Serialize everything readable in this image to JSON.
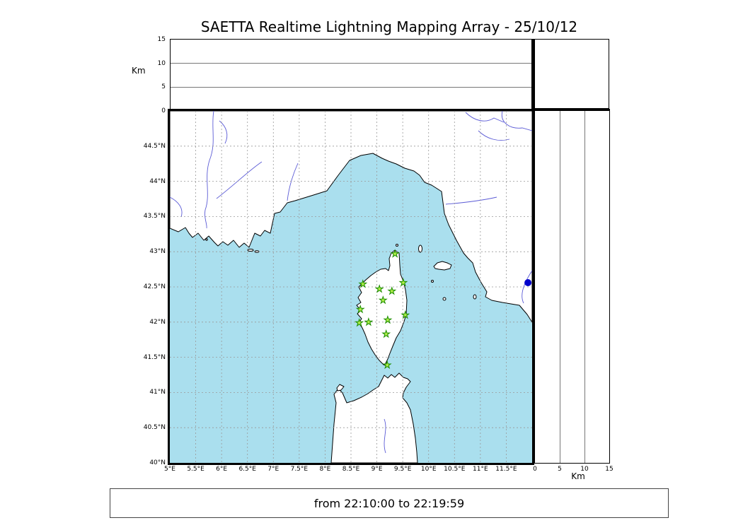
{
  "chart_data": {
    "type": "scatter",
    "title": "SAETTA Realtime Lightning Mapping Array - 25/10/12",
    "time_window": "from 22:10:00 to 22:19:59",
    "km_label": "Km",
    "map_extent": {
      "lon_min": 5,
      "lon_max": 12,
      "lat_min": 40,
      "lat_max": 45
    },
    "altitude_axis": {
      "min_km": 0,
      "max_km": 15,
      "gridlines_km": [
        5,
        10
      ]
    },
    "lon_tick_labels": [
      "5°E",
      "5.5°E",
      "6°E",
      "6.5°E",
      "7°E",
      "7.5°E",
      "8°E",
      "8.5°E",
      "9°E",
      "9.5°E",
      "10°E",
      "10.5°E",
      "11°E",
      "11.5°E"
    ],
    "lat_tick_labels": [
      "44.5°N",
      "44°N",
      "43.5°N",
      "43°N",
      "42.5°N",
      "42°N",
      "41.5°N",
      "41°N",
      "40.5°N",
      "40°N"
    ],
    "alt_top_tick_labels": [
      "15",
      "10",
      "5",
      "0"
    ],
    "alt_right_tick_labels": [
      "0",
      "5",
      "10",
      "15"
    ],
    "grid_step_deg": 0.5,
    "stations": [
      {
        "lon": 9.35,
        "lat": 42.97
      },
      {
        "lon": 8.73,
        "lat": 42.54
      },
      {
        "lon": 9.05,
        "lat": 42.47
      },
      {
        "lon": 9.29,
        "lat": 42.44
      },
      {
        "lon": 9.51,
        "lat": 42.56
      },
      {
        "lon": 9.12,
        "lat": 42.31
      },
      {
        "lon": 8.68,
        "lat": 42.18
      },
      {
        "lon": 9.55,
        "lat": 42.1
      },
      {
        "lon": 8.66,
        "lat": 41.99
      },
      {
        "lon": 8.84,
        "lat": 42.0
      },
      {
        "lon": 9.21,
        "lat": 42.03
      },
      {
        "lon": 9.18,
        "lat": 41.83
      },
      {
        "lon": 9.2,
        "lat": 41.39
      }
    ],
    "source_points": [
      {
        "lon": 11.92,
        "lat": 42.56,
        "color": "#0000cc"
      }
    ],
    "colors": {
      "sea": "#aadfee",
      "land": "#ffffff",
      "coastline": "#000000",
      "river": "#5b5bd6",
      "grid": "#999999",
      "station_fill": "#b4f04a",
      "station_stroke": "#1e8f00",
      "source_dot": "#0000cc"
    }
  }
}
